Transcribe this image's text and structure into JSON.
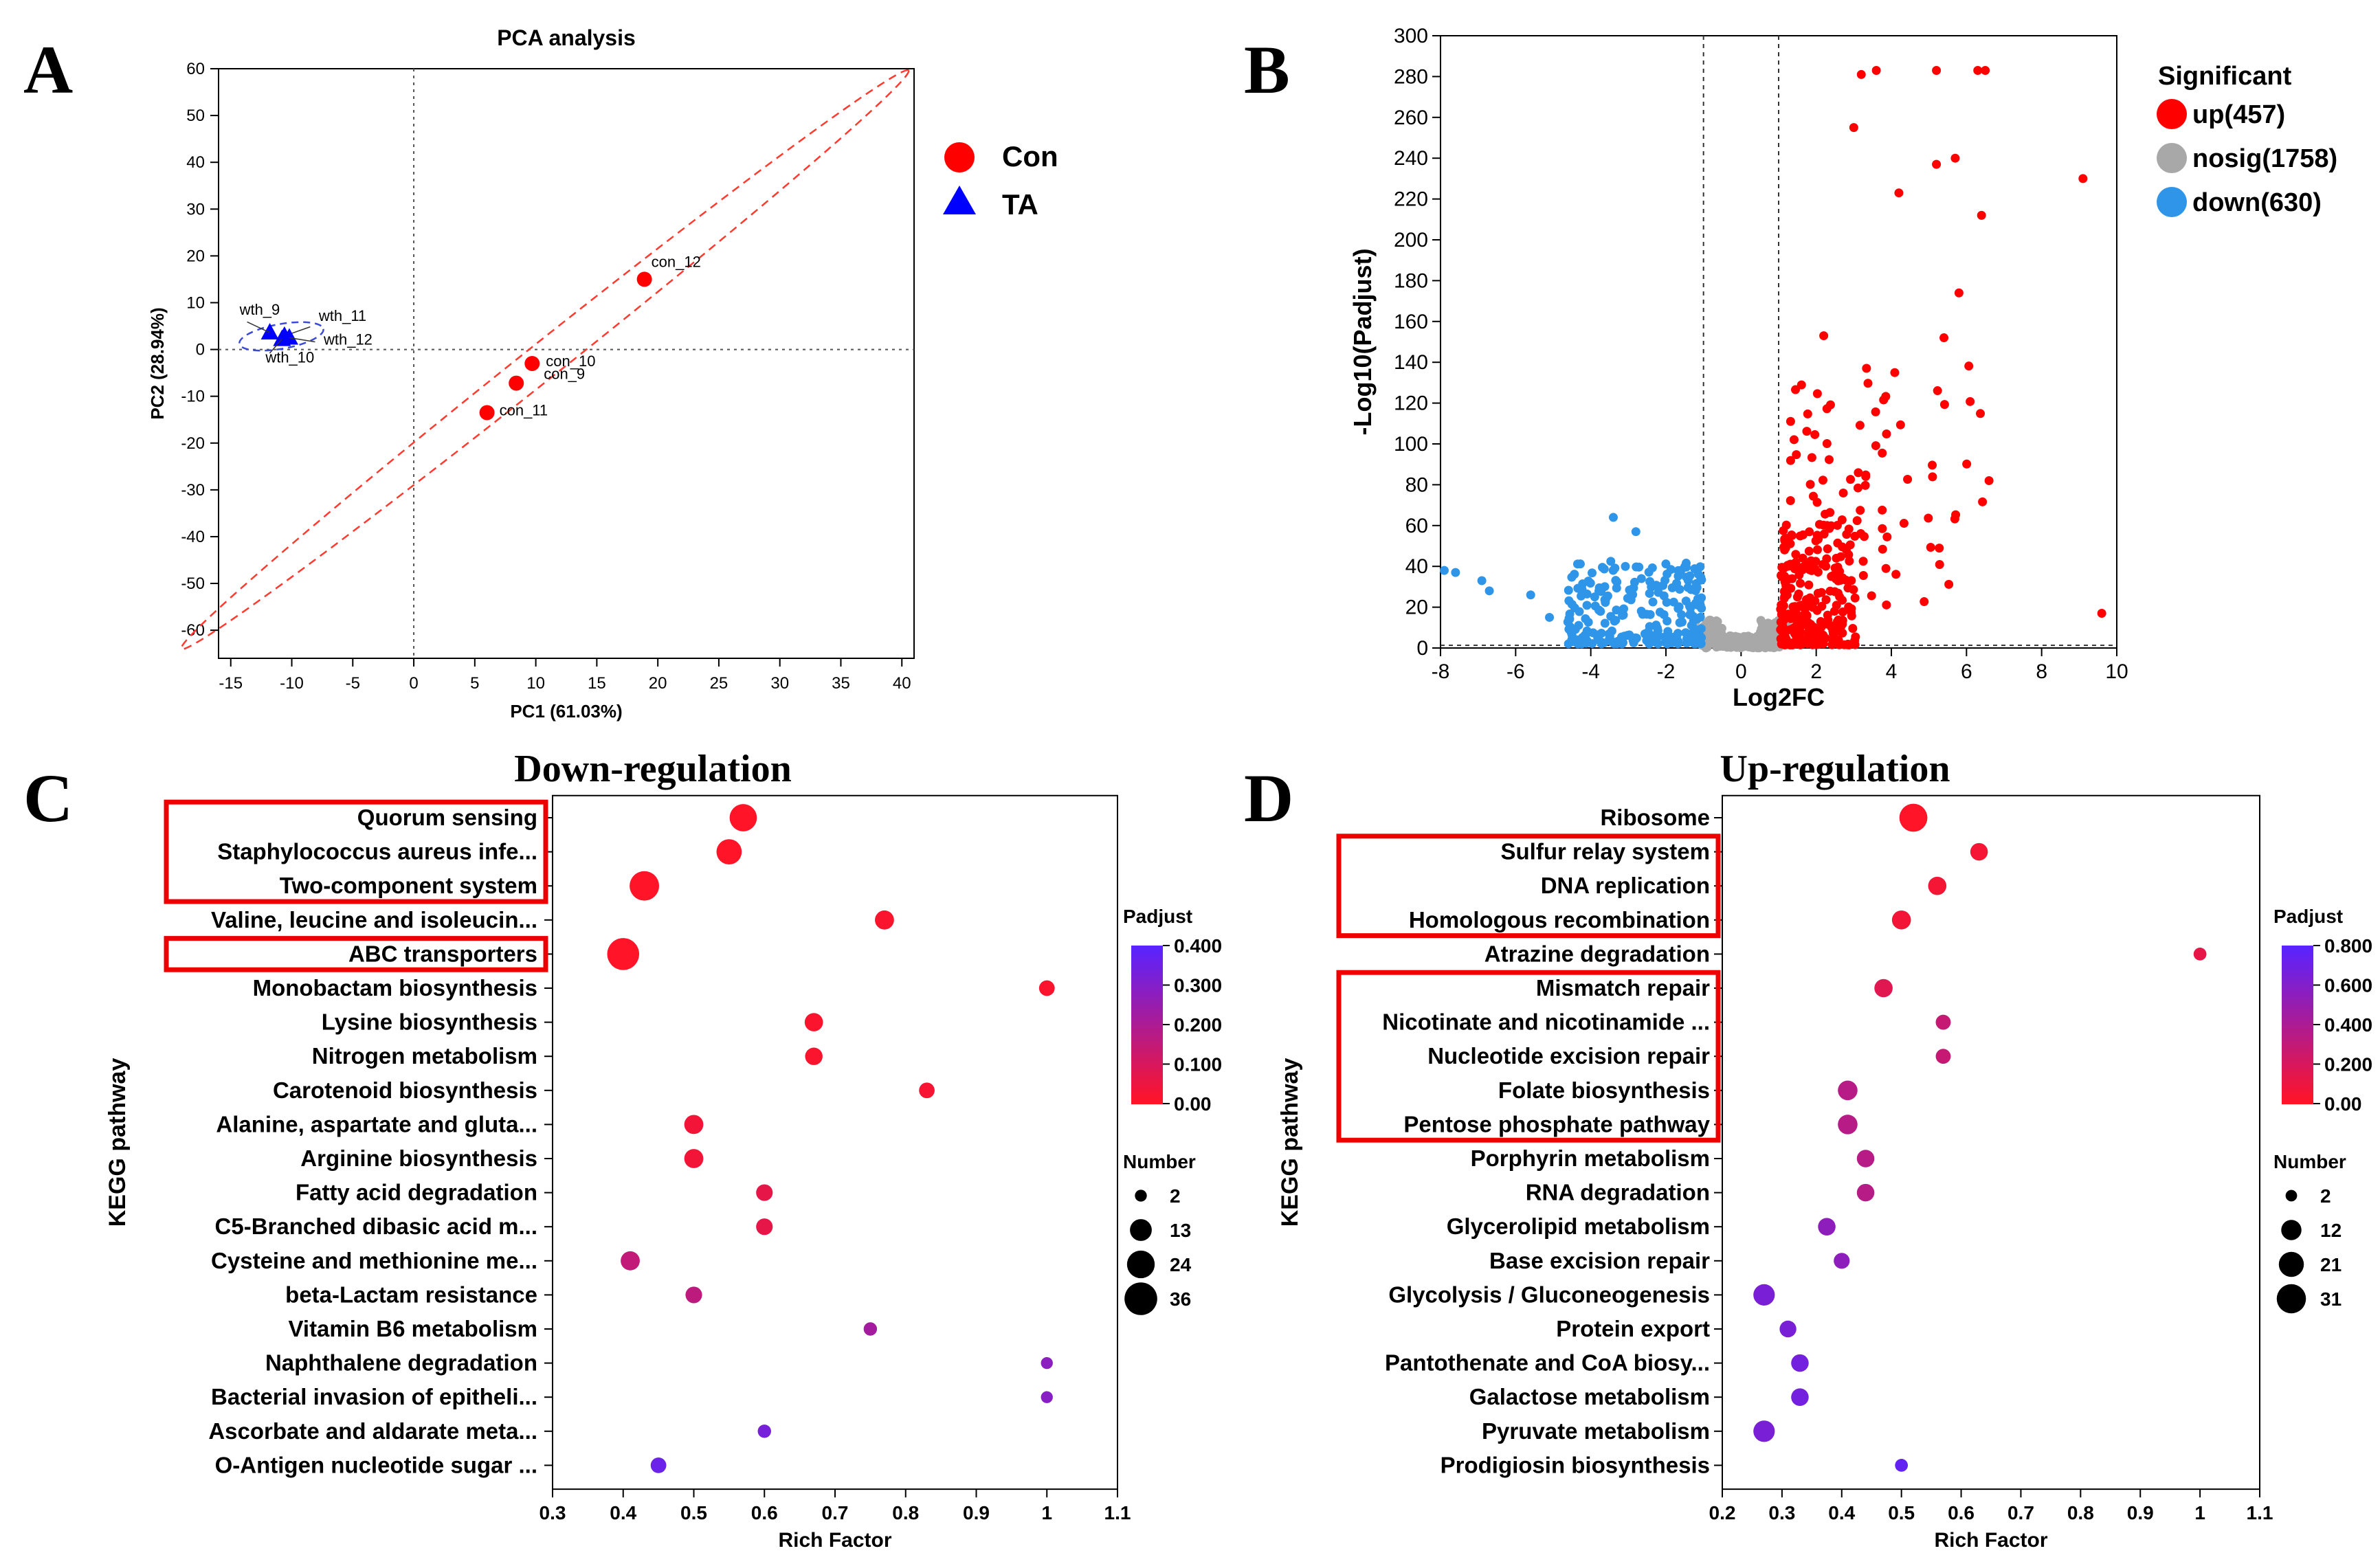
{
  "chart_data": [
    {
      "panel": "A",
      "type": "scatter",
      "title": "PCA analysis",
      "xlabel": "PC1 (61.03%)",
      "ylabel": "PC2 (28.94%)",
      "xlim": [
        -16,
        41
      ],
      "ylim": [
        -66,
        60
      ],
      "xticks": [
        -15,
        -10,
        -5,
        0,
        5,
        10,
        15,
        20,
        25,
        30,
        35,
        40
      ],
      "yticks": [
        60,
        50,
        40,
        30,
        20,
        10,
        0,
        -10,
        -20,
        -30,
        -40,
        -50,
        -60
      ],
      "legend": {
        "placement": "right",
        "entries": [
          {
            "label": "Con",
            "color": "#ff0000",
            "marker": "circle"
          },
          {
            "label": "TA",
            "color": "#0000ff",
            "marker": "triangle"
          }
        ]
      },
      "series": [
        {
          "name": "Con",
          "color": "#ff0000",
          "points": [
            {
              "label": "con_12",
              "x": 18.9,
              "y": 15.0
            },
            {
              "label": "con_10",
              "x": 9.7,
              "y": -3.0
            },
            {
              "label": "con_9",
              "x": 8.4,
              "y": -7.2
            },
            {
              "label": "con_11",
              "x": 6.0,
              "y": -13.5
            }
          ]
        },
        {
          "name": "TA",
          "color": "#0000ff",
          "points": [
            {
              "label": "wth_9",
              "x": -11.8,
              "y": 3.6
            },
            {
              "label": "wth_11",
              "x": -10.6,
              "y": 2.9
            },
            {
              "label": "wth_12",
              "x": -10.2,
              "y": 2.5
            },
            {
              "label": "wth_10",
              "x": -10.8,
              "y": 2.2
            }
          ]
        }
      ]
    },
    {
      "panel": "B",
      "type": "scatter",
      "xlabel": "Log2FC",
      "ylabel": "-Log10(Padjust)",
      "xlim": [
        -8,
        10
      ],
      "ylim": [
        0,
        300
      ],
      "xticks": [
        -8,
        -6,
        -4,
        -2,
        0,
        2,
        4,
        6,
        8,
        10
      ],
      "yticks": [
        0,
        20,
        40,
        60,
        80,
        100,
        120,
        140,
        160,
        180,
        200,
        220,
        240,
        260,
        280,
        300
      ],
      "thresholds": {
        "log2fc": [
          -1,
          1
        ],
        "neg_log10_padj": 1.3
      },
      "legend": {
        "title": "Significant",
        "placement": "top-right",
        "entries": [
          {
            "label": "up(457)",
            "color": "#ff0000"
          },
          {
            "label": "nosig(1758)",
            "color": "#a8a8a8"
          },
          {
            "label": "down(630)",
            "color": "#2e95e8"
          }
        ]
      },
      "highlighted_points_up": [
        [
          3.2,
          281
        ],
        [
          3.6,
          283
        ],
        [
          5.2,
          283
        ],
        [
          6.3,
          283
        ],
        [
          6.5,
          283
        ],
        [
          3.0,
          255
        ],
        [
          5.7,
          240
        ],
        [
          5.2,
          237
        ],
        [
          9.1,
          230
        ],
        [
          4.2,
          223
        ],
        [
          6.4,
          212
        ],
        [
          5.8,
          174
        ],
        [
          5.4,
          152
        ],
        [
          2.2,
          153
        ],
        [
          6.6,
          82
        ],
        [
          9.6,
          17
        ]
      ],
      "highlighted_points_down": [
        [
          -7.9,
          38
        ],
        [
          -7.6,
          37
        ],
        [
          -6.9,
          33
        ],
        [
          -6.7,
          28
        ],
        [
          -5.6,
          26
        ],
        [
          -5.1,
          15
        ],
        [
          -3.4,
          64
        ],
        [
          -2.8,
          57
        ]
      ]
    },
    {
      "panel": "C",
      "type": "scatter",
      "title": "Down-regulation",
      "xlabel": "Rich Factor",
      "ylabel": "KEGG pathway",
      "xlim": [
        0.3,
        1.1
      ],
      "xticks": [
        0.3,
        0.4,
        0.5,
        0.6,
        0.7,
        0.8,
        0.9,
        1,
        1.1
      ],
      "color_legend": {
        "title": "Padjust",
        "ticks": [
          "0.400",
          "0.300",
          "0.200",
          "0.100",
          "0.00"
        ],
        "range": [
          0,
          0.4
        ]
      },
      "size_legend": {
        "title": "Number",
        "values": [
          2,
          13,
          24,
          36
        ]
      },
      "boxed_pathways": [
        "Quorum sensing",
        "Staphylococcus aureus infe...",
        "Two-component system",
        "ABC transporters"
      ],
      "pathways": [
        {
          "name": "Quorum sensing",
          "rich_factor": 0.57,
          "number": 23,
          "padjust": 0.0
        },
        {
          "name": "Staphylococcus aureus infe...",
          "rich_factor": 0.55,
          "number": 19,
          "padjust": 0.0
        },
        {
          "name": "Two-component system",
          "rich_factor": 0.43,
          "number": 28,
          "padjust": 0.0
        },
        {
          "name": "Valine, leucine and isoleucin...",
          "rich_factor": 0.77,
          "number": 9,
          "padjust": 0.01
        },
        {
          "name": "ABC transporters",
          "rich_factor": 0.4,
          "number": 34,
          "padjust": 0.0
        },
        {
          "name": "Monobactam biosynthesis",
          "rich_factor": 1.0,
          "number": 5,
          "padjust": 0.01
        },
        {
          "name": "Lysine biosynthesis",
          "rich_factor": 0.67,
          "number": 8,
          "padjust": 0.01
        },
        {
          "name": "Nitrogen metabolism",
          "rich_factor": 0.67,
          "number": 7,
          "padjust": 0.01
        },
        {
          "name": "Carotenoid biosynthesis",
          "rich_factor": 0.83,
          "number": 5,
          "padjust": 0.02
        },
        {
          "name": "Alanine, aspartate and gluta...",
          "rich_factor": 0.5,
          "number": 9,
          "padjust": 0.03
        },
        {
          "name": "Arginine biosynthesis",
          "rich_factor": 0.5,
          "number": 9,
          "padjust": 0.03
        },
        {
          "name": "Fatty acid degradation",
          "rich_factor": 0.6,
          "number": 6,
          "padjust": 0.06
        },
        {
          "name": "C5-Branched dibasic acid m...",
          "rich_factor": 0.6,
          "number": 6,
          "padjust": 0.06
        },
        {
          "name": "Cysteine and methionine me...",
          "rich_factor": 0.41,
          "number": 9,
          "padjust": 0.15
        },
        {
          "name": "beta-Lactam resistance",
          "rich_factor": 0.5,
          "number": 6,
          "padjust": 0.16
        },
        {
          "name": "Vitamin B6 metabolism",
          "rich_factor": 0.75,
          "number": 3,
          "padjust": 0.22
        },
        {
          "name": "Naphthalene degradation",
          "rich_factor": 1.0,
          "number": 2,
          "padjust": 0.28
        },
        {
          "name": "Bacterial invasion of epitheli...",
          "rich_factor": 1.0,
          "number": 2,
          "padjust": 0.29
        },
        {
          "name": "Ascorbate and aldarate meta...",
          "rich_factor": 0.6,
          "number": 3,
          "padjust": 0.33
        },
        {
          "name": "O-Antigen nucleotide sugar ...",
          "rich_factor": 0.45,
          "number": 5,
          "padjust": 0.36
        }
      ]
    },
    {
      "panel": "D",
      "type": "scatter",
      "title": "Up-regulation",
      "xlabel": "Rich Factor",
      "ylabel": "KEGG pathway",
      "xlim": [
        0.2,
        1.1
      ],
      "xticks": [
        0.2,
        0.3,
        0.4,
        0.5,
        0.6,
        0.7,
        0.8,
        0.9,
        1,
        1.1
      ],
      "color_legend": {
        "title": "Padjust",
        "ticks": [
          "0.800",
          "0.600",
          "0.400",
          "0.200",
          "0.00"
        ],
        "range": [
          0,
          0.8
        ]
      },
      "size_legend": {
        "title": "Number",
        "values": [
          2,
          12,
          21,
          31
        ]
      },
      "boxed_pathways": [
        "Sulfur relay system",
        "DNA replication",
        "Homologous recombination",
        "Mismatch repair",
        "Nicotinate and nicotinamide ...",
        "Nucleotide excision repair",
        "Folate biosynthesis",
        "Pentose phosphate pathway"
      ],
      "pathways": [
        {
          "name": "Ribosome",
          "rich_factor": 0.52,
          "number": 28,
          "padjust": 0.0
        },
        {
          "name": "Sulfur relay system",
          "rich_factor": 0.63,
          "number": 8,
          "padjust": 0.05
        },
        {
          "name": "DNA replication",
          "rich_factor": 0.56,
          "number": 9,
          "padjust": 0.05
        },
        {
          "name": "Homologous recombination",
          "rich_factor": 0.5,
          "number": 10,
          "padjust": 0.06
        },
        {
          "name": "Atrazine degradation",
          "rich_factor": 1.0,
          "number": 3,
          "padjust": 0.12
        },
        {
          "name": "Mismatch repair",
          "rich_factor": 0.47,
          "number": 9,
          "padjust": 0.15
        },
        {
          "name": "Nicotinate and nicotinamide ...",
          "rich_factor": 0.57,
          "number": 5,
          "padjust": 0.28
        },
        {
          "name": "Nucleotide excision repair",
          "rich_factor": 0.57,
          "number": 5,
          "padjust": 0.28
        },
        {
          "name": "Folate biosynthesis",
          "rich_factor": 0.41,
          "number": 11,
          "padjust": 0.35
        },
        {
          "name": "Pentose phosphate pathway",
          "rich_factor": 0.41,
          "number": 11,
          "padjust": 0.35
        },
        {
          "name": "Porphyrin metabolism",
          "rich_factor": 0.44,
          "number": 8,
          "padjust": 0.35
        },
        {
          "name": "RNA degradation",
          "rich_factor": 0.44,
          "number": 8,
          "padjust": 0.35
        },
        {
          "name": "Glycerolipid metabolism",
          "rich_factor": 0.375,
          "number": 8,
          "padjust": 0.55
        },
        {
          "name": "Base excision repair",
          "rich_factor": 0.4,
          "number": 6,
          "padjust": 0.55
        },
        {
          "name": "Glycolysis / Gluconeogenesis",
          "rich_factor": 0.27,
          "number": 14,
          "padjust": 0.65
        },
        {
          "name": "Protein export",
          "rich_factor": 0.31,
          "number": 7,
          "padjust": 0.65
        },
        {
          "name": "Pantothenate and CoA biosy...",
          "rich_factor": 0.33,
          "number": 8,
          "padjust": 0.68
        },
        {
          "name": "Galactose metabolism",
          "rich_factor": 0.33,
          "number": 8,
          "padjust": 0.68
        },
        {
          "name": "Pyruvate metabolism",
          "rich_factor": 0.27,
          "number": 14,
          "padjust": 0.65
        },
        {
          "name": "Prodigiosin biosynthesis",
          "rich_factor": 0.5,
          "number": 3,
          "padjust": 0.75
        }
      ]
    }
  ]
}
